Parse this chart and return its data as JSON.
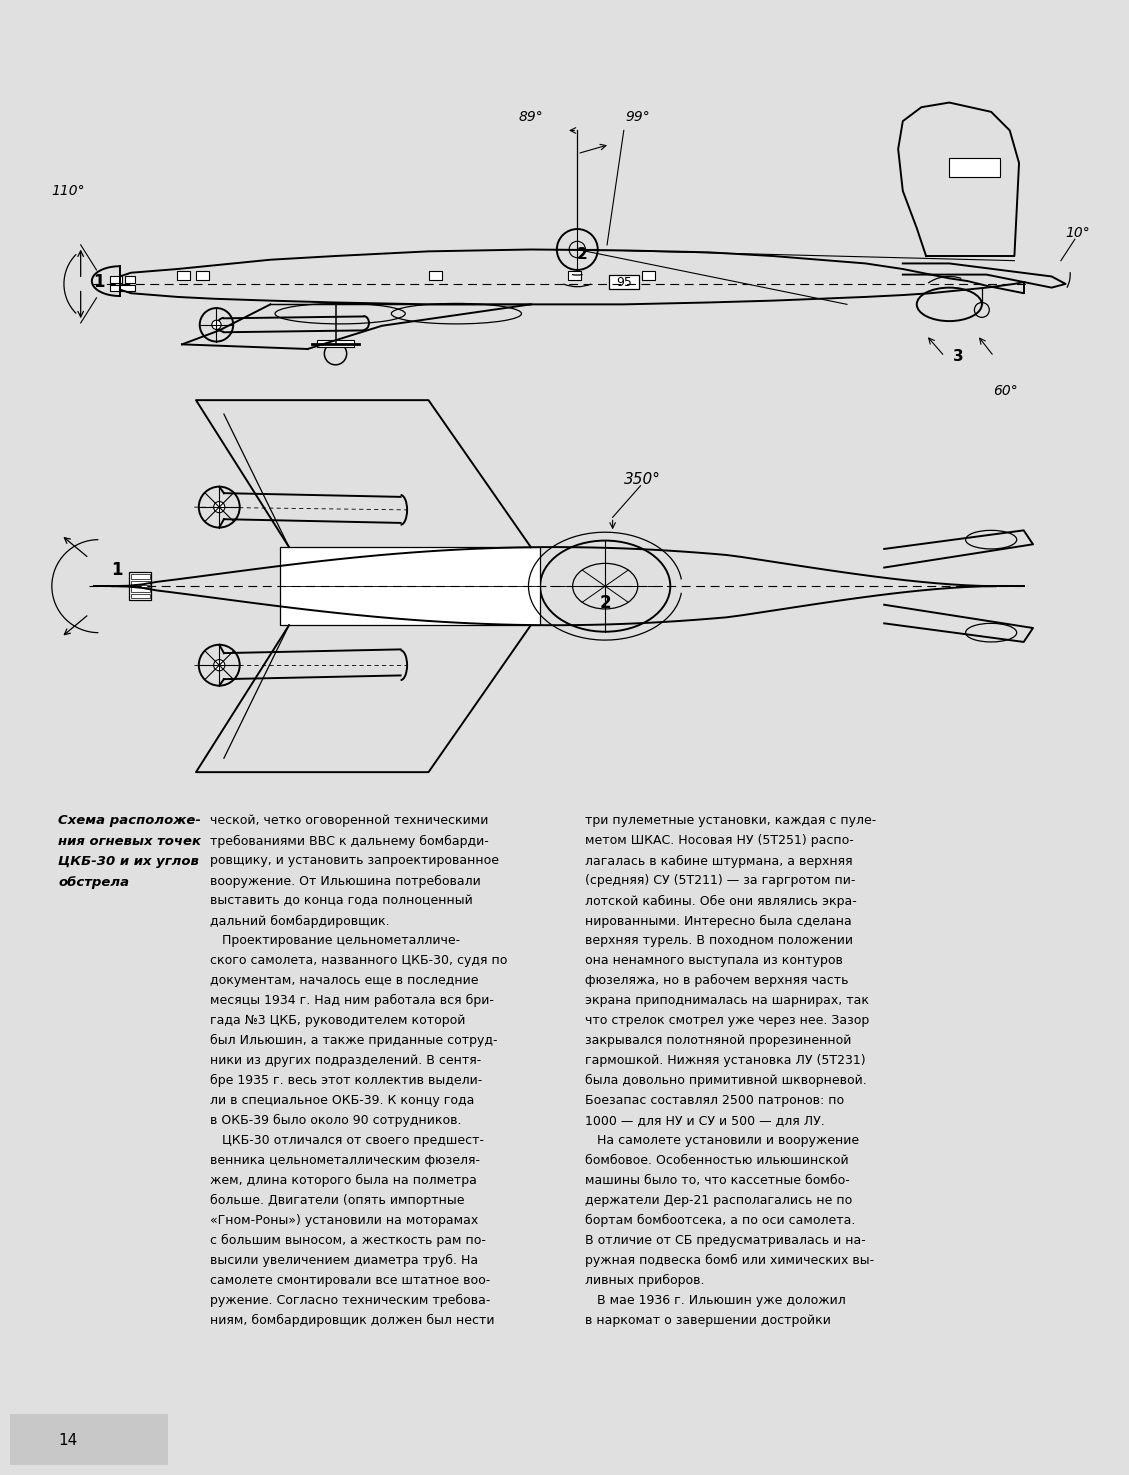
{
  "page_bg": "#e0e0e0",
  "content_bg": "#ffffff",
  "page_number": "14",
  "caption_lines": [
    "Схема расположе-",
    "ния огневых точек",
    "ЦКБ-30 и их углов",
    "обстрела"
  ],
  "col1_lines": [
    "ческой, четко оговоренной техническими",
    "требованиями ВВС к дальнему бомбарди-",
    "ровщику, и установить запроектированное",
    "вооружение. От Ильюшина потребовали",
    "выставить до конца года полноценный",
    "дальний бомбардировщик.",
    "   Проектирование цельнометалличе-",
    "ского самолета, названного ЦКБ-30, судя по",
    "документам, началось еще в последние",
    "месяцы 1934 г. Над ним работала вся бри-",
    "гада №3 ЦКБ, руководителем которой",
    "был Ильюшин, а также приданные сотруд-",
    "ники из других подразделений. В сентя-",
    "бре 1935 г. весь этот коллектив выдели-",
    "ли в специальное ОКБ-39. К концу года",
    "в ОКБ-39 было около 90 сотрудников.",
    "   ЦКБ-30 отличался от своего предшест-",
    "венника цельнометаллическим фюзеля-",
    "жем, длина которого была на полметра",
    "больше. Двигатели (опять импортные",
    "«Гном-Роны») установили на моторамах",
    "с большим выносом, а жесткость рам по-",
    "высили увеличением диаметра труб. На",
    "самолете смонтировали все штатное воо-",
    "ружение. Согласно техническим требова-",
    "ниям, бомбардировщик должен был нести"
  ],
  "col2_lines": [
    "три пулеметные установки, каждая с пуле-",
    "метом ШКАС. Носовая НУ (5Т251) распо-",
    "лагалась в кабине штурмана, а верхняя",
    "(средняя) СУ (5Т211) — за гаргротом пи-",
    "лотской кабины. Обе они являлись экра-",
    "нированными. Интересно была сделана",
    "верхняя турель. В походном положении",
    "она ненамного выступала из контуров",
    "фюзеляжа, но в рабочем верхняя часть",
    "экрана приподнималась на шарнирах, так",
    "что стрелок смотрел уже через нее. Зазор",
    "закрывался полотняной прорезиненной",
    "гармошкой. Нижняя установка ЛУ (5Т231)",
    "была довольно примитивной шкворневой.",
    "Боезапас составлял 2500 патронов: по",
    "1000 — для НУ и СУ и 500 — для ЛУ.",
    "   На самолете установили и вооружение",
    "бомбовое. Особенностью ильюшинской",
    "машины было то, что кассетные бомбо-",
    "держатели Дер-21 располагались не по",
    "бортам бомбоотсека, а по оси самолета.",
    "В отличие от СБ предусматривалась и на-",
    "ружная подвеска бомб или химических вы-",
    "ливных приборов.",
    "   В мае 1936 г. Ильюшин уже доложил",
    "в наркомат о завершении достройки"
  ]
}
